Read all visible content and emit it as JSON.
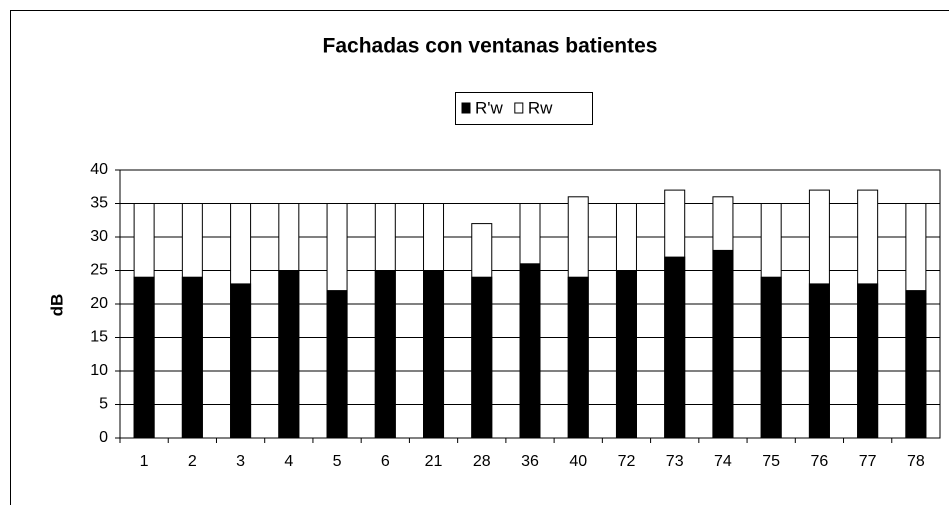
{
  "chart_data": {
    "type": "bar",
    "title": "Fachadas con ventanas batientes",
    "y_label": "dB",
    "categories": [
      "1",
      "2",
      "3",
      "4",
      "5",
      "6",
      "21",
      "28",
      "36",
      "40",
      "72",
      "73",
      "74",
      "75",
      "76",
      "77",
      "78"
    ],
    "series": [
      {
        "name": "R'w",
        "color": "#000000",
        "values": [
          24,
          24,
          23,
          25,
          22,
          25,
          25,
          24,
          26,
          24,
          25,
          27,
          28,
          24,
          23,
          23,
          22
        ]
      },
      {
        "name": "Rw",
        "color": "#ffffff",
        "values": [
          35,
          35,
          35,
          35,
          35,
          35,
          35,
          32,
          35,
          36,
          35,
          37,
          36,
          35,
          37,
          37,
          35
        ]
      }
    ],
    "ylim": [
      0,
      40
    ],
    "yticks": [
      0,
      5,
      10,
      15,
      20,
      25,
      30,
      35,
      40
    ],
    "grid": true
  }
}
